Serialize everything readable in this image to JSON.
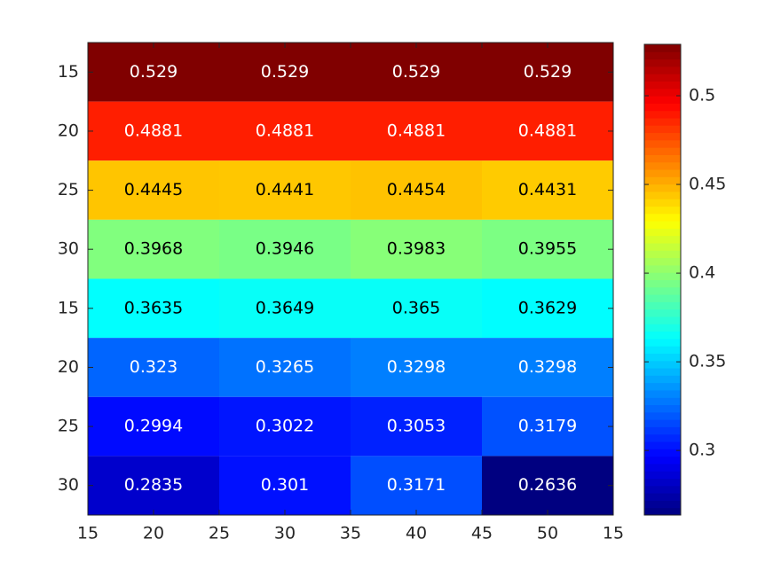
{
  "chart_data": {
    "type": "heatmap",
    "colormap": "jet",
    "values": [
      [
        0.529,
        0.529,
        0.529,
        0.529
      ],
      [
        0.4881,
        0.4881,
        0.4881,
        0.4881
      ],
      [
        0.4445,
        0.4441,
        0.4454,
        0.4431
      ],
      [
        0.3968,
        0.3946,
        0.3983,
        0.3955
      ],
      [
        0.3635,
        0.3649,
        0.365,
        0.3629
      ],
      [
        0.323,
        0.3265,
        0.3298,
        0.3298
      ],
      [
        0.2994,
        0.3022,
        0.3053,
        0.3179
      ],
      [
        0.2835,
        0.301,
        0.3171,
        0.2636
      ]
    ],
    "xlim": [
      0.5,
      4.5
    ],
    "xticks": [
      {
        "value": 0.5,
        "label": "15"
      },
      {
        "value": 1,
        "label": "20"
      },
      {
        "value": 1.5,
        "label": "25"
      },
      {
        "value": 2,
        "label": "30"
      },
      {
        "value": 2.5,
        "label": "35"
      },
      {
        "value": 3,
        "label": "40"
      },
      {
        "value": 3.5,
        "label": "45"
      },
      {
        "value": 4,
        "label": "50"
      },
      {
        "value": 4.5,
        "label": "15"
      }
    ],
    "ylim": [
      0.5,
      8.5
    ],
    "yticks": [
      {
        "value": 1,
        "label": "15"
      },
      {
        "value": 2,
        "label": "20"
      },
      {
        "value": 3,
        "label": "25"
      },
      {
        "value": 4,
        "label": "30"
      },
      {
        "value": 5,
        "label": "15"
      },
      {
        "value": 6,
        "label": "20"
      },
      {
        "value": 7,
        "label": "25"
      },
      {
        "value": 8,
        "label": "30"
      }
    ],
    "clim": [
      0.2636,
      0.529
    ],
    "cticks": [
      0.3,
      0.35,
      0.4,
      0.45,
      0.5
    ]
  }
}
